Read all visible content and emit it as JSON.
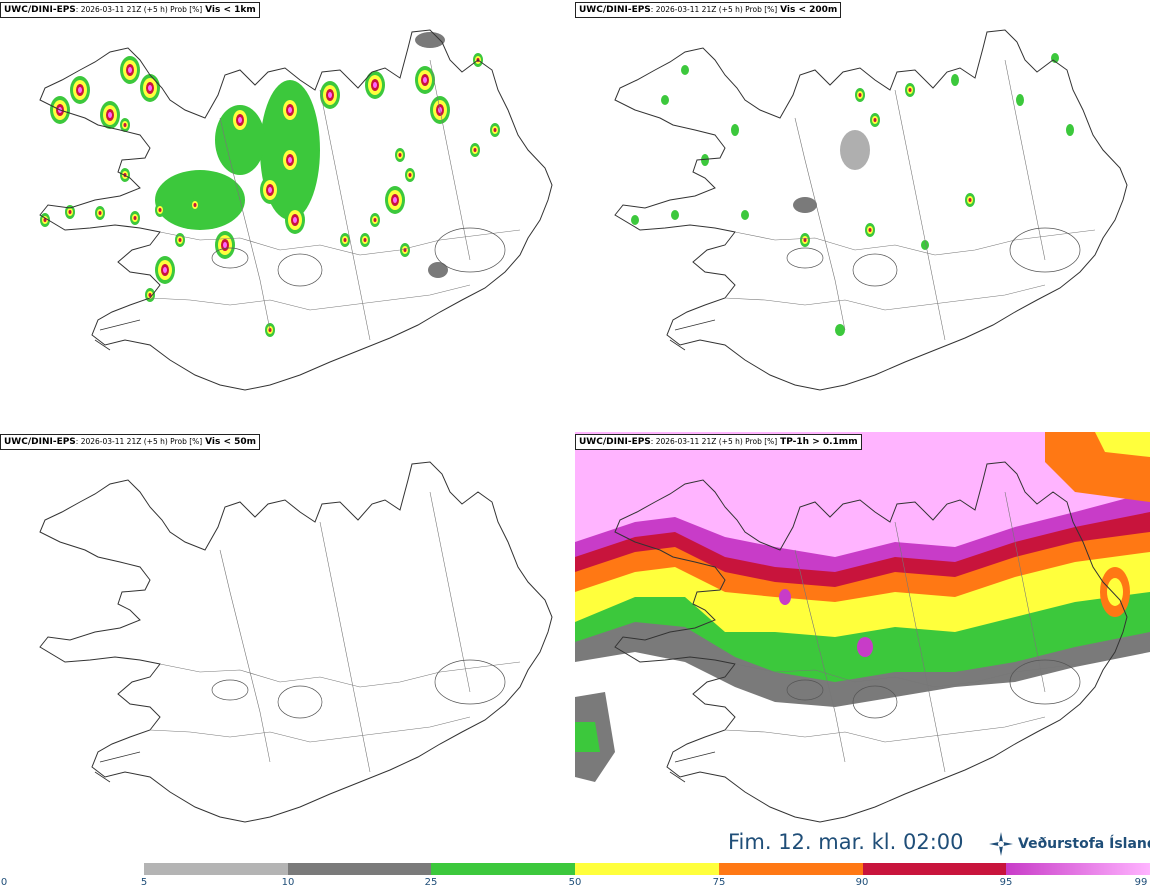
{
  "panels": [
    {
      "model": "UWC/DINI-EPS",
      "info": ": 2026-03-11 21Z (+5 h) Prob [%]",
      "variable": "Vis < 1km"
    },
    {
      "model": "UWC/DINI-EPS",
      "info": ": 2026-03-11 21Z (+5 h) Prob [%]",
      "variable": "Vis < 200m"
    },
    {
      "model": "UWC/DINI-EPS",
      "info": ": 2026-03-11 21Z (+5 h) Prob [%]",
      "variable": "Vis < 50m"
    },
    {
      "model": "UWC/DINI-EPS",
      "info": ": 2026-03-11 21Z (+5 h) Prob [%]",
      "variable": "TP-1h > 0.1mm"
    }
  ],
  "valid_time": "Fim. 12. mar. kl. 02:00",
  "logo": {
    "text": "Veðurstofa Íslands",
    "icon": "vedurstofa-logo-icon"
  },
  "colorbar": {
    "ticks": [
      "0",
      "5",
      "10",
      "25",
      "50",
      "75",
      "90",
      "95",
      "99"
    ],
    "colors": [
      "#b4b4b4",
      "#7a7a7a",
      "#3cc83c",
      "#ffff3c",
      "#ff7814",
      "#c8143c",
      "#c83cc8"
    ],
    "gradient_end": "#ffb4ff"
  }
}
